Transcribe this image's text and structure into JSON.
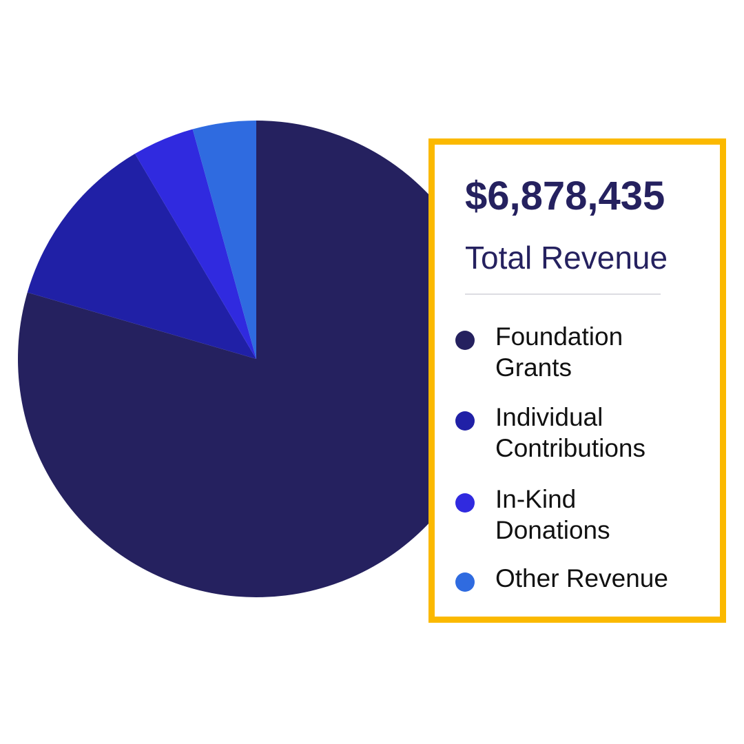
{
  "summary": {
    "total_amount": "$6,878,435",
    "total_label": "Total Revenue"
  },
  "chart_data": {
    "type": "pie",
    "unit": "percent of total revenue",
    "categories": [
      "Foundation Grants",
      "Individual Contributions",
      "In-Kind Donations",
      "Other Revenue"
    ],
    "values": [
      79.5,
      12.0,
      4.2,
      4.3
    ],
    "colors": [
      "#25215f",
      "#2020a6",
      "#302adf",
      "#2f6be0"
    ],
    "start_angle_deg": 0,
    "direction": "clockwise from 12 o'clock"
  },
  "legend": {
    "items": [
      {
        "label_lines": [
          "Foundation",
          "Grants"
        ],
        "color": "#25215f"
      },
      {
        "label_lines": [
          "Individual",
          "Contributions"
        ],
        "color": "#2020a6"
      },
      {
        "label_lines": [
          "In-Kind",
          "Donations"
        ],
        "color": "#302adf"
      },
      {
        "label_lines": [
          "Other Revenue"
        ],
        "color": "#2f6be0"
      }
    ]
  },
  "colors": {
    "frame": "#fbb900",
    "heading": "#25215f",
    "legend_text": "#111111"
  }
}
